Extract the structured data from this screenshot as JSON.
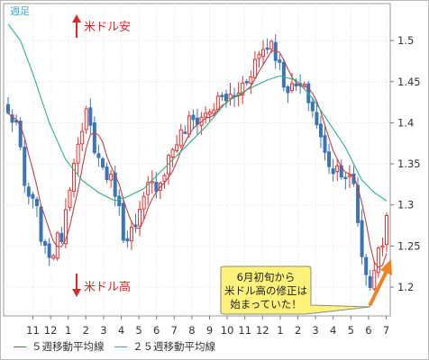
{
  "chart_data": {
    "type": "candlestick",
    "timeframe_label": "週足",
    "x_tick_labels": [
      "11",
      "12",
      "1",
      "2",
      "3",
      "4",
      "5",
      "6",
      "7",
      "8",
      "9",
      "10",
      "11",
      "12",
      "1",
      "2",
      "3",
      "4",
      "5",
      "6",
      "7"
    ],
    "y_ticks": [
      "1.5",
      "1.45",
      "1.4",
      "1.35",
      "1.3",
      "1.25",
      "1.2"
    ],
    "ylim": [
      1.165,
      1.545
    ],
    "up_annotation": "米ドル安",
    "down_annotation": "米ドル高",
    "callout_lines": [
      "6月初旬から",
      "米ドル高の修正は",
      "始まっていた！"
    ],
    "legend": [
      {
        "label": "５週移動平均線",
        "color": "#c0404b"
      },
      {
        "label": "２５週移動平均線",
        "color": "#2fb27d"
      }
    ],
    "colors": {
      "up": "#e23030",
      "down": "#3a75b8",
      "ma5": "#c0404b",
      "ma25": "#2fb27d",
      "arrow": "#f08221",
      "callout_fill": "#fff27a"
    },
    "anchors": [
      [
        0,
        1.41
      ],
      [
        2,
        1.4
      ],
      [
        4,
        1.32
      ],
      [
        7,
        1.29
      ],
      [
        9,
        1.24
      ],
      [
        11,
        1.245
      ],
      [
        13,
        1.265
      ],
      [
        16,
        1.36
      ],
      [
        18,
        1.38
      ],
      [
        19,
        1.41
      ],
      [
        22,
        1.355
      ],
      [
        26,
        1.32
      ],
      [
        28,
        1.265
      ],
      [
        31,
        1.27
      ],
      [
        34,
        1.32
      ],
      [
        37,
        1.33
      ],
      [
        40,
        1.37
      ],
      [
        44,
        1.4
      ],
      [
        48,
        1.41
      ],
      [
        52,
        1.43
      ],
      [
        55,
        1.43
      ],
      [
        58,
        1.455
      ],
      [
        60,
        1.475
      ],
      [
        62,
        1.49
      ],
      [
        64,
        1.5
      ],
      [
        65,
        1.485
      ],
      [
        67,
        1.45
      ],
      [
        69,
        1.44
      ],
      [
        71,
        1.445
      ],
      [
        73,
        1.43
      ],
      [
        75,
        1.4
      ],
      [
        77,
        1.36
      ],
      [
        79,
        1.345
      ],
      [
        81,
        1.345
      ],
      [
        83,
        1.33
      ],
      [
        84,
        1.32
      ],
      [
        85,
        1.28
      ],
      [
        86,
        1.24
      ],
      [
        87,
        1.215
      ],
      [
        88,
        1.205
      ],
      [
        89,
        1.225
      ],
      [
        90,
        1.24
      ],
      [
        91,
        1.255
      ],
      [
        92,
        1.285
      ]
    ],
    "ma25_anchors": [
      [
        0,
        1.52
      ],
      [
        3,
        1.5
      ],
      [
        6,
        1.46
      ],
      [
        10,
        1.4
      ],
      [
        14,
        1.355
      ],
      [
        18,
        1.33
      ],
      [
        22,
        1.315
      ],
      [
        26,
        1.305
      ],
      [
        29,
        1.31
      ],
      [
        33,
        1.32
      ],
      [
        38,
        1.345
      ],
      [
        43,
        1.37
      ],
      [
        48,
        1.395
      ],
      [
        53,
        1.425
      ],
      [
        58,
        1.44
      ],
      [
        63,
        1.452
      ],
      [
        66,
        1.457
      ],
      [
        70,
        1.452
      ],
      [
        74,
        1.43
      ],
      [
        78,
        1.4
      ],
      [
        82,
        1.37
      ],
      [
        86,
        1.33
      ],
      [
        89,
        1.315
      ],
      [
        92,
        1.305
      ]
    ]
  }
}
